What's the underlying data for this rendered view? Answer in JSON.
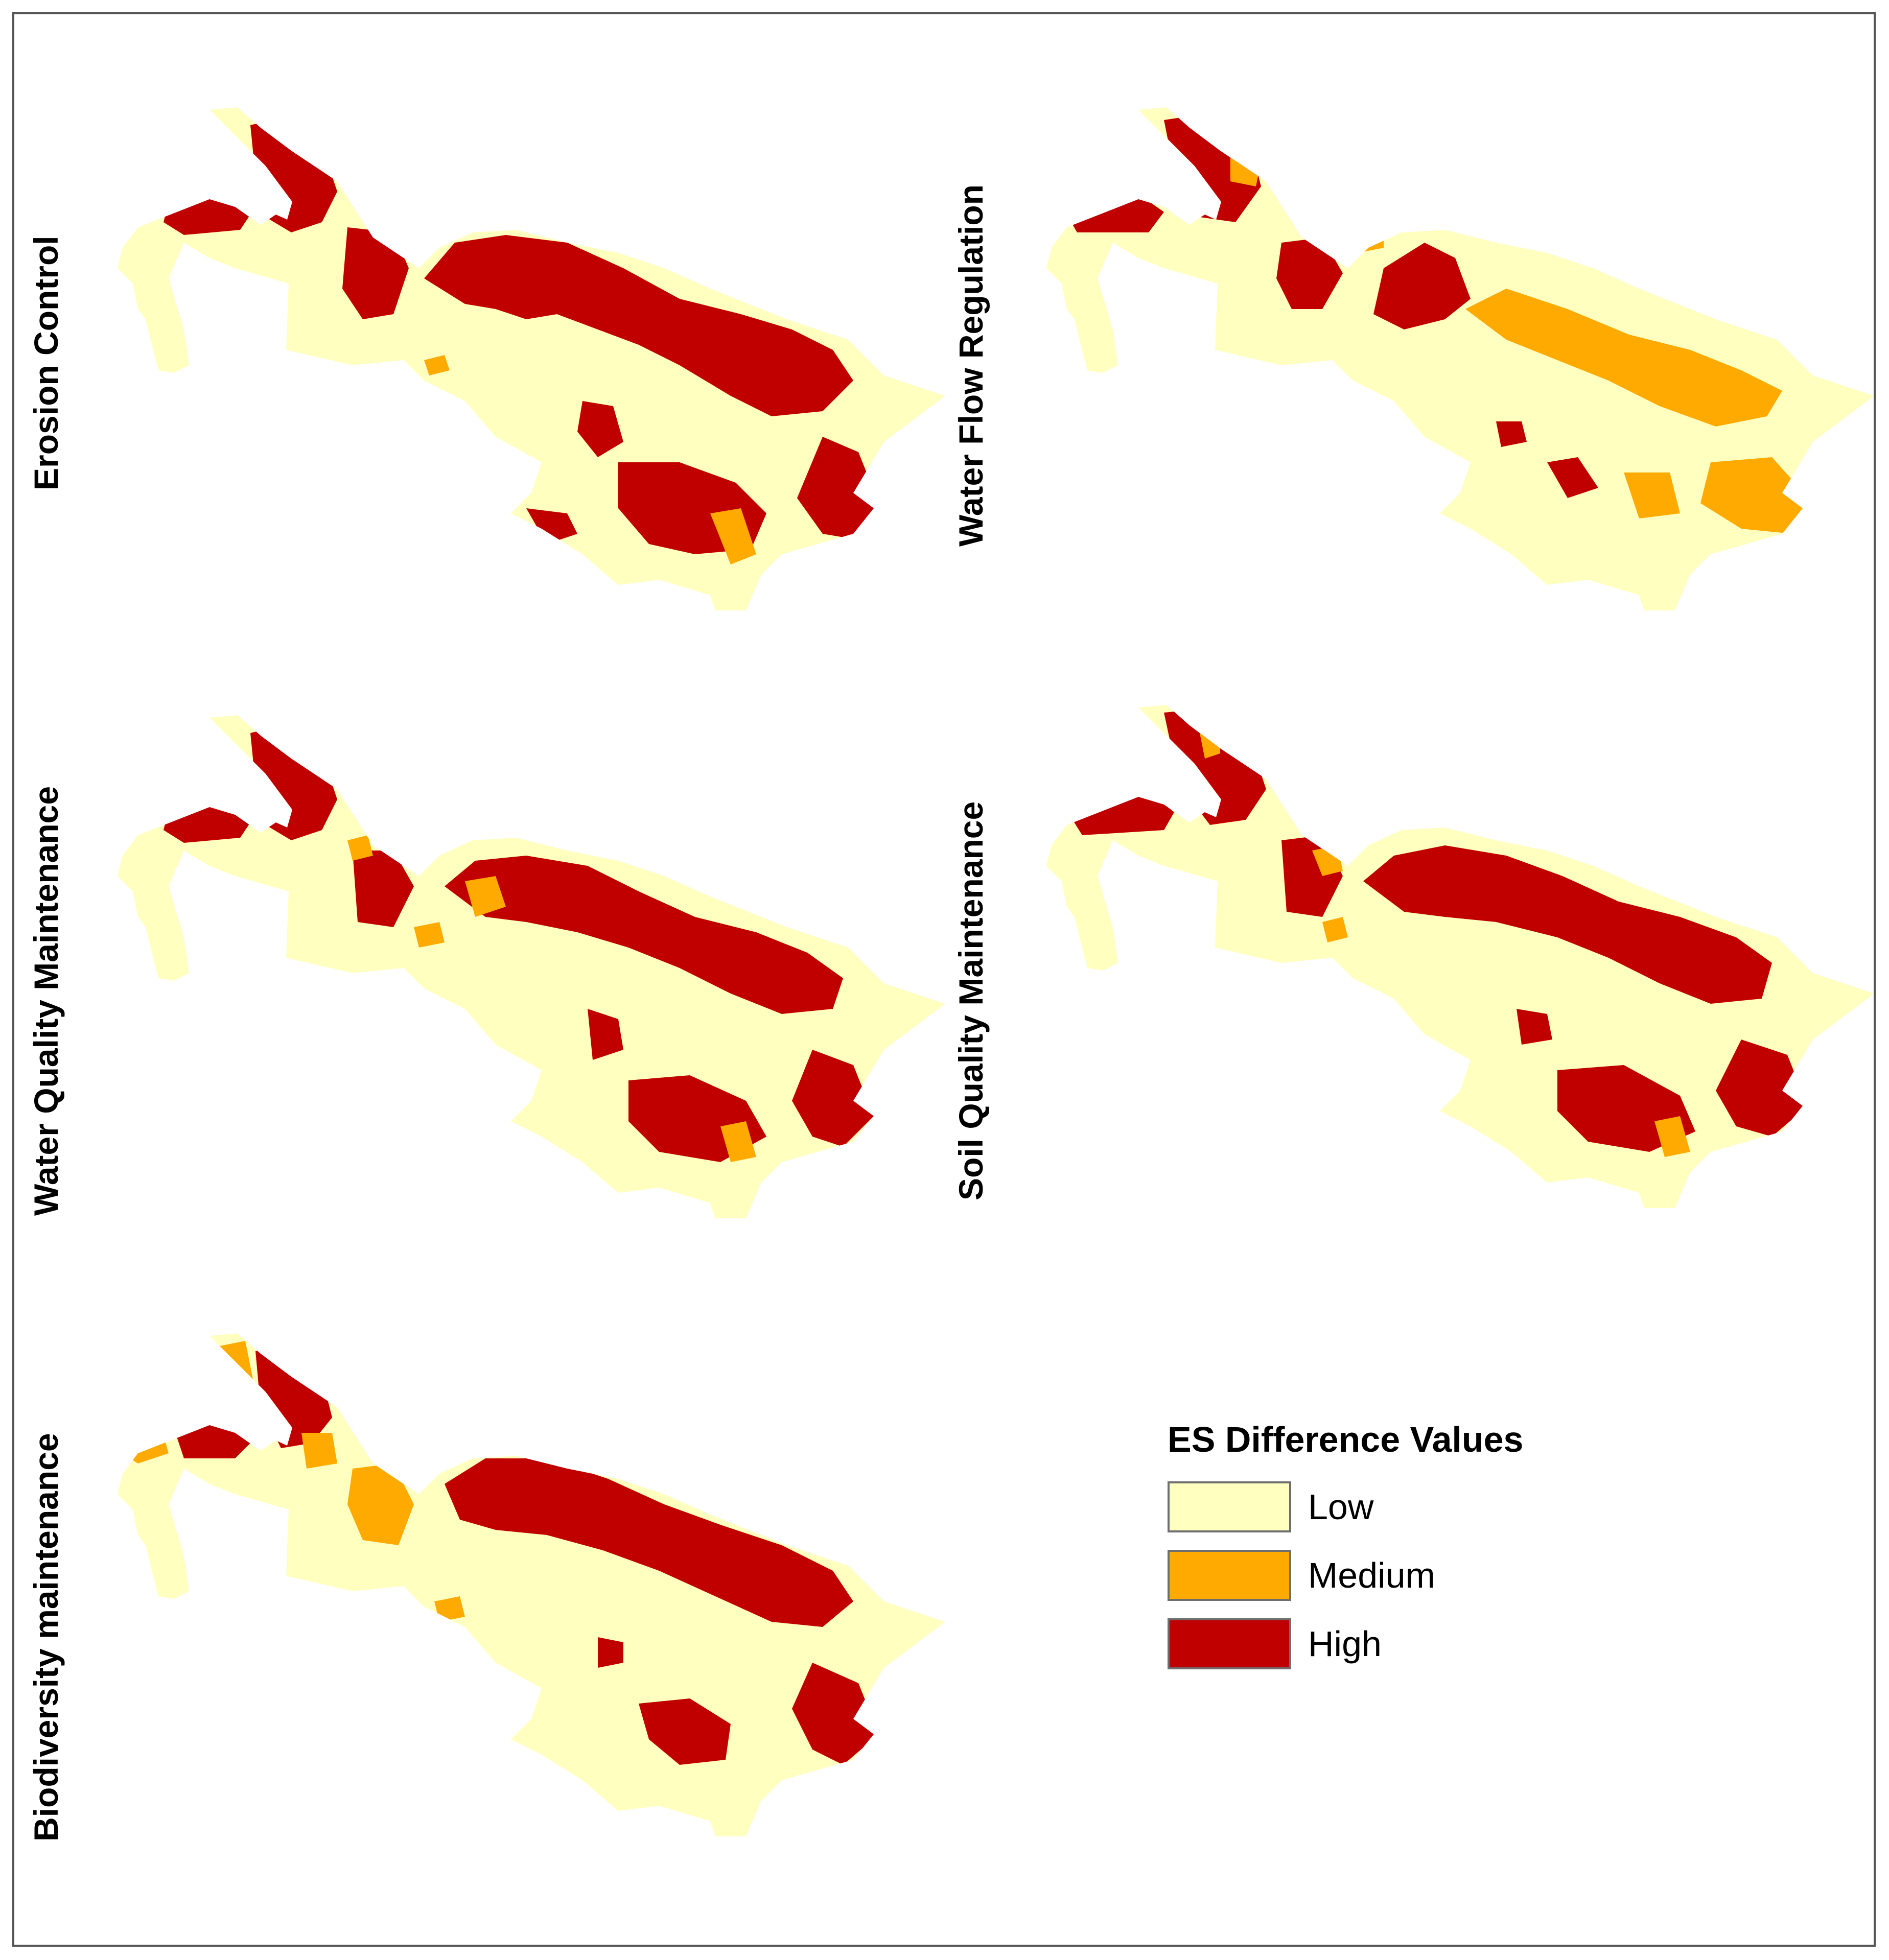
{
  "panels": [
    {
      "label": "Erosion Control"
    },
    {
      "label": "Water Flow Regulation"
    },
    {
      "label": "Water Quality Maintenance"
    },
    {
      "label": "Soil Quality Maintenance"
    },
    {
      "label": "Biodiversity maintenance"
    }
  ],
  "legend": {
    "title": "ES Difference Values",
    "items": [
      {
        "label": "Low",
        "color": "#ffffc0"
      },
      {
        "label": "Medium",
        "color": "#ffaa00"
      },
      {
        "label": "High",
        "color": "#c00000"
      }
    ]
  }
}
